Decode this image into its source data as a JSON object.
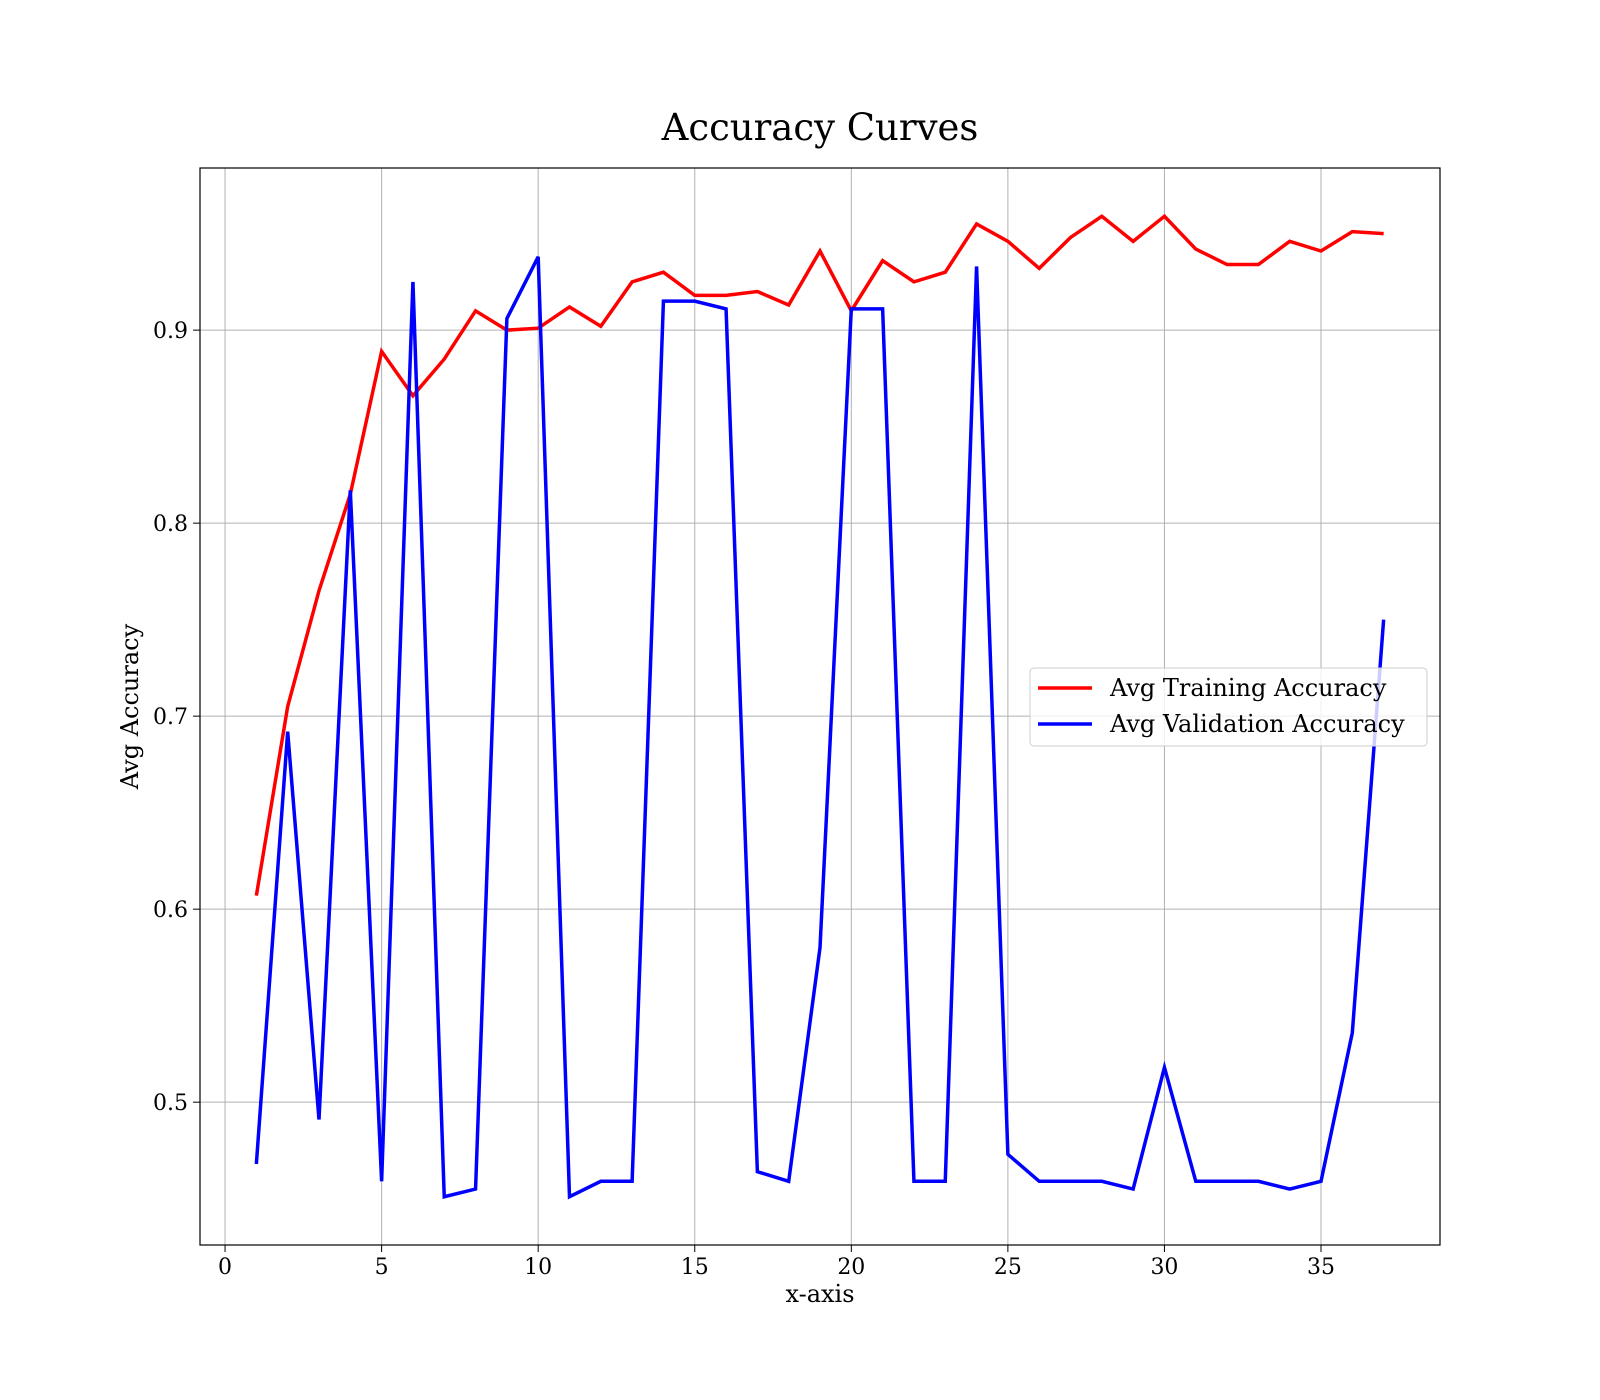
{
  "chart_data": {
    "type": "line",
    "title": "Accuracy Curves",
    "xlabel": "x-axis",
    "ylabel": "Avg Accuracy",
    "xlim": [
      -0.8,
      38.8
    ],
    "ylim": [
      0.426,
      0.984
    ],
    "xticks": [
      0,
      5,
      10,
      15,
      20,
      25,
      30,
      35
    ],
    "yticks": [
      0.5,
      0.6,
      0.7,
      0.8,
      0.9
    ],
    "xtick_labels": [
      "0",
      "5",
      "10",
      "15",
      "20",
      "25",
      "30",
      "35"
    ],
    "ytick_labels": [
      "0.5",
      "0.6",
      "0.7",
      "0.8",
      "0.9"
    ],
    "grid": true,
    "legend_position": "center-right",
    "x": [
      1,
      2,
      3,
      4,
      5,
      6,
      7,
      8,
      9,
      10,
      11,
      12,
      13,
      14,
      15,
      16,
      17,
      18,
      19,
      20,
      21,
      22,
      23,
      24,
      25,
      26,
      27,
      28,
      29,
      30,
      31,
      32,
      33,
      34,
      35,
      36,
      37
    ],
    "series": [
      {
        "name": "Avg Training Accuracy",
        "color": "#ff0000",
        "values": [
          0.607,
          0.705,
          0.765,
          0.815,
          0.889,
          0.866,
          0.885,
          0.91,
          0.9,
          0.901,
          0.912,
          0.902,
          0.925,
          0.93,
          0.918,
          0.918,
          0.92,
          0.913,
          0.941,
          0.91,
          0.936,
          0.925,
          0.93,
          0.955,
          0.946,
          0.932,
          0.948,
          0.959,
          0.946,
          0.959,
          0.942,
          0.934,
          0.934,
          0.946,
          0.941,
          0.951,
          0.95
        ]
      },
      {
        "name": "Avg Validation Accuracy",
        "color": "#0000ff",
        "values": [
          0.468,
          0.692,
          0.491,
          0.817,
          0.459,
          0.925,
          0.451,
          0.455,
          0.906,
          0.938,
          0.451,
          0.459,
          0.459,
          0.915,
          0.915,
          0.911,
          0.464,
          0.459,
          0.58,
          0.911,
          0.911,
          0.459,
          0.459,
          0.933,
          0.473,
          0.459,
          0.459,
          0.459,
          0.455,
          0.518,
          0.459,
          0.459,
          0.459,
          0.455,
          0.459,
          0.536,
          0.75
        ]
      }
    ]
  }
}
